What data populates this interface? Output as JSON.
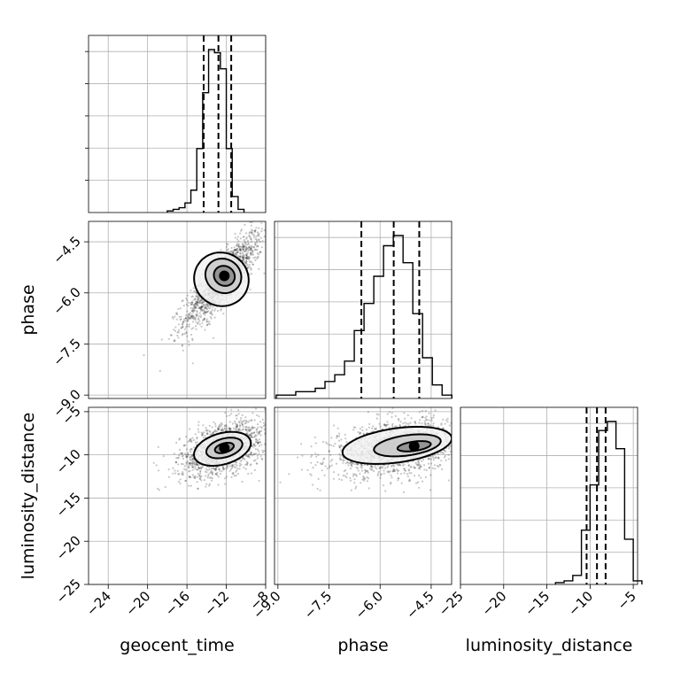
{
  "chart_data": {
    "type": "corner",
    "parameters": [
      "geocent_time",
      "phase",
      "luminosity_distance"
    ],
    "ranges": {
      "geocent_time": [
        -26.0,
        -8.0
      ],
      "phase": [
        -9.1,
        -3.9
      ],
      "luminosity_distance": [
        -25.0,
        -4.5
      ]
    },
    "ticks": {
      "geocent_time": [
        -24,
        -20,
        -16,
        -12,
        -8
      ],
      "phase": [
        -9.0,
        -7.5,
        -6.0,
        -4.5
      ],
      "luminosity_distance": [
        -25,
        -20,
        -15,
        -10,
        -5
      ]
    },
    "tick_labels": {
      "geocent_time": [
        "−24",
        "−20",
        "−16",
        "−12",
        "−8"
      ],
      "phase": [
        "−9.0",
        "−7.5",
        "−6.0",
        "−4.5"
      ],
      "luminosity_distance": [
        "−25",
        "−20",
        "−15",
        "−10",
        "−5"
      ]
    },
    "histograms": {
      "geocent_time": {
        "bin_start": -18.0,
        "bin_width": 0.6,
        "counts": [
          1,
          2,
          3,
          6,
          14,
          40,
          75,
          102,
          100,
          90,
          40,
          10,
          2
        ]
      },
      "phase": {
        "bin_start": -9.05,
        "bin_width": 0.2865,
        "counts": [
          1,
          1,
          2,
          2,
          3,
          5,
          7,
          11,
          20,
          28,
          36,
          45,
          48,
          40,
          25,
          12,
          4,
          1
        ]
      },
      "luminosity_distance": {
        "bin_start": -14.0,
        "bin_width": 1.0,
        "counts": [
          1,
          2,
          5,
          30,
          55,
          85,
          90,
          75,
          25,
          2
        ]
      }
    },
    "quantiles": {
      "geocent_time": [
        -14.3,
        -12.8,
        -11.5
      ],
      "phase": [
        -6.55,
        -5.6,
        -4.85
      ],
      "luminosity_distance": [
        -10.4,
        -9.2,
        -8.2
      ]
    },
    "contours": {
      "phase_vs_geocent_time": [
        {
          "cx": -12.5,
          "cy": -5.6,
          "sx": 3.0,
          "sy": 0.9,
          "angle_deg": -58
        },
        {
          "cx": -12.3,
          "cy": -5.5,
          "sx": 1.9,
          "sy": 0.6,
          "angle_deg": -58
        },
        {
          "cx": -12.2,
          "cy": -5.5,
          "sx": 1.1,
          "sy": 0.35,
          "angle_deg": -58
        }
      ],
      "luminosity_distance_vs_geocent_time": [
        {
          "cx": -12.4,
          "cy": -9.3,
          "sx": 3.3,
          "sy": 2.0,
          "angle_deg": -16
        },
        {
          "cx": -12.2,
          "cy": -9.2,
          "sx": 2.1,
          "sy": 1.2,
          "angle_deg": -16
        },
        {
          "cx": -12.2,
          "cy": -9.2,
          "sx": 1.1,
          "sy": 0.6,
          "angle_deg": -16
        }
      ],
      "luminosity_distance_vs_phase": [
        {
          "cx": -5.5,
          "cy": -8.9,
          "sx": 1.8,
          "sy": 2.2,
          "angle_deg": -8
        },
        {
          "cx": -5.2,
          "cy": -8.9,
          "sx": 1.1,
          "sy": 1.3,
          "angle_deg": -8
        },
        {
          "cx": -5.0,
          "cy": -9.0,
          "sx": 0.55,
          "sy": 0.6,
          "angle_deg": -8
        }
      ]
    },
    "samples": {
      "phase_vs_geocent_time": {
        "center": [
          -12.3,
          -5.6
        ],
        "spread": [
          2.0,
          0.7
        ],
        "rho": 0.85,
        "n": 1500
      },
      "luminosity_distance_vs_geocent_time": {
        "center": [
          -12.3,
          -9.3
        ],
        "spread": [
          2.2,
          1.6
        ],
        "rho": 0.45,
        "n": 1500
      },
      "luminosity_distance_vs_phase": {
        "center": [
          -5.5,
          -9.2
        ],
        "spread": [
          0.95,
          1.6
        ],
        "rho": 0.3,
        "n": 1600
      }
    }
  }
}
